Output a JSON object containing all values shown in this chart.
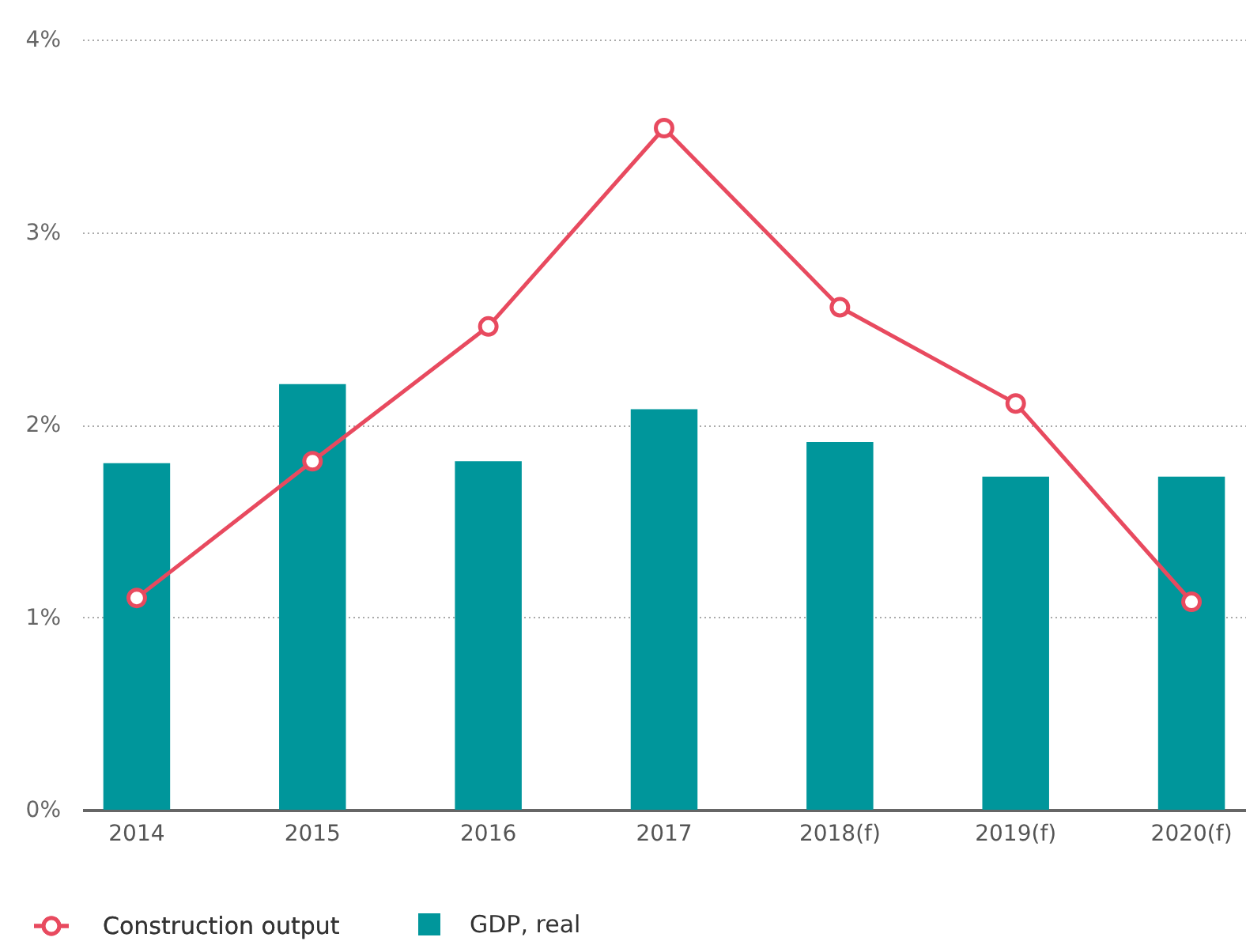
{
  "chart_data": {
    "type": "bar",
    "categories": [
      "2014",
      "2015",
      "2016",
      "2017",
      "2018(f)",
      "2019(f)",
      "2020(f)"
    ],
    "series": [
      {
        "name": "Construction output",
        "type": "line",
        "color": "#e84a5f",
        "values": [
          1.1,
          1.81,
          2.51,
          3.54,
          2.61,
          2.11,
          1.08
        ]
      },
      {
        "name": "GDP, real",
        "color": "#00969b",
        "values": [
          1.8,
          2.21,
          1.81,
          2.08,
          1.91,
          1.73,
          1.73
        ]
      }
    ],
    "ylim": [
      0,
      4
    ],
    "yticks": [
      {
        "value": 0,
        "label": "0%"
      },
      {
        "value": 1,
        "label": "1%"
      },
      {
        "value": 2,
        "label": "2%"
      },
      {
        "value": 3,
        "label": "3%"
      },
      {
        "value": 4,
        "label": "4%"
      }
    ],
    "grid": "y",
    "legend": "bottom left",
    "marker": "circle",
    "line_style": "solid"
  }
}
